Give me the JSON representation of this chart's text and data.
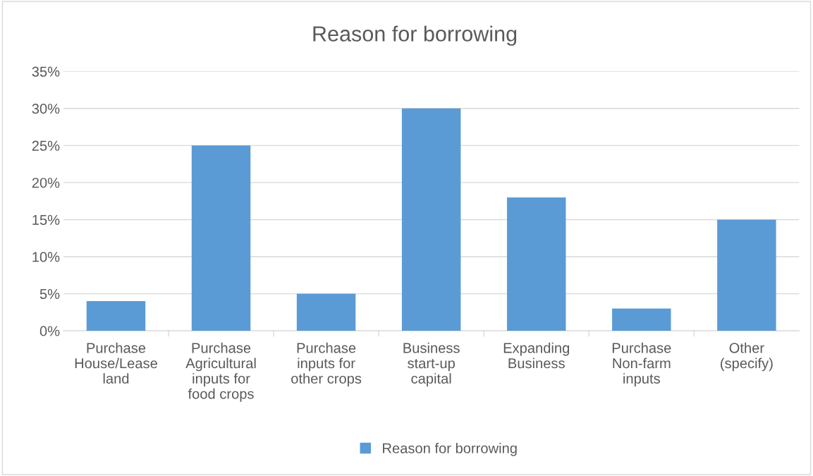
{
  "chart_data": {
    "type": "bar",
    "title": "Reason for borrowing",
    "categories": [
      "Purchase House/Lease land",
      "Purchase Agricultural inputs for food crops",
      "Purchase inputs for other crops",
      "Business start-up capital",
      "Expanding Business",
      "Purchase Non-farm inputs",
      "Other (specify)"
    ],
    "series": [
      {
        "name": "Reason for borrowing",
        "color": "#5b9bd5",
        "values": [
          4,
          25,
          5,
          30,
          18,
          3,
          15
        ]
      }
    ],
    "ylim": [
      0,
      35
    ],
    "yticks": [
      {
        "value": 0,
        "label": "0%"
      },
      {
        "value": 5,
        "label": "5%"
      },
      {
        "value": 10,
        "label": "10%"
      },
      {
        "value": 15,
        "label": "15%"
      },
      {
        "value": 20,
        "label": "20%"
      },
      {
        "value": 25,
        "label": "25%"
      },
      {
        "value": 30,
        "label": "30%"
      },
      {
        "value": 35,
        "label": "35%"
      }
    ],
    "grid": "y",
    "legend": "bottom"
  }
}
